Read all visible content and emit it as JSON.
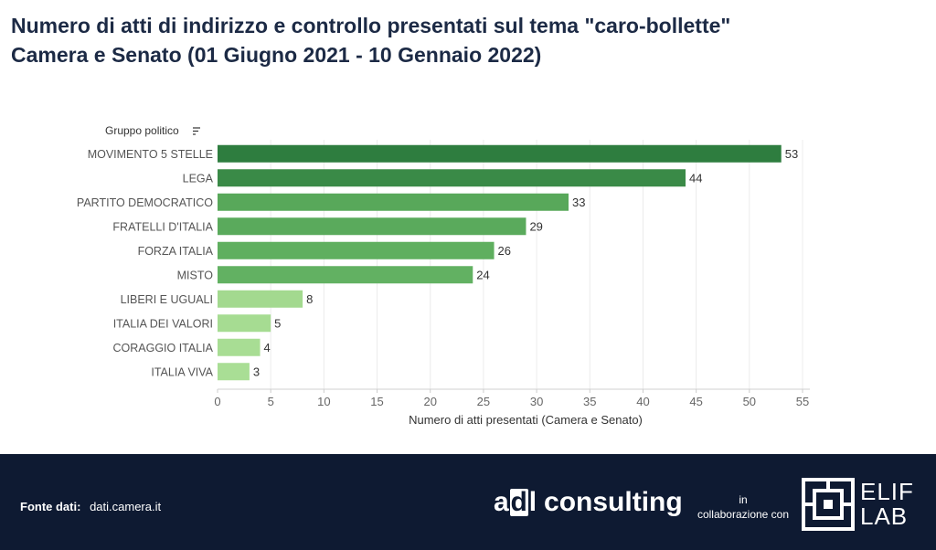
{
  "title_line1": "Numero di atti di indirizzo e controllo presentati sul tema \"caro-bollette\"",
  "title_line2": "Camera e Senato (01 Giugno 2021 - 10 Gennaio 2022)",
  "chart_data": {
    "type": "bar",
    "orientation": "horizontal",
    "category_header": "Gruppo politico",
    "categories": [
      "MOVIMENTO 5 STELLE",
      "LEGA",
      "PARTITO DEMOCRATICO",
      "FRATELLI D'ITALIA",
      "FORZA ITALIA",
      "MISTO",
      "LIBERI E UGUALI",
      "ITALIA DEI VALORI",
      "CORAGGIO ITALIA",
      "ITALIA VIVA"
    ],
    "values": [
      53,
      44,
      33,
      29,
      26,
      24,
      8,
      5,
      4,
      3
    ],
    "xlabel": "Numero di atti presentati (Camera e Senato)",
    "xlim": [
      0,
      55
    ],
    "xticks": [
      0,
      5,
      10,
      15,
      20,
      25,
      30,
      35,
      40,
      45,
      50,
      55
    ],
    "grid": true,
    "colors": [
      "#2e7d3f",
      "#3a8a47",
      "#58a85a",
      "#5aaa5c",
      "#5faf5f",
      "#62b162",
      "#a3d98f",
      "#a6dc92",
      "#a8dd94",
      "#a9de95"
    ]
  },
  "footer": {
    "source_label": "Fonte dati:",
    "source_value": "dati.camera.it",
    "brand_a": "a",
    "brand_d": "d",
    "brand_l": "l",
    "brand_consulting": "consulting",
    "collab_in": "in",
    "collab_text": "collaborazione con",
    "partner_line1": "ELIF",
    "partner_line2": "LAB"
  }
}
